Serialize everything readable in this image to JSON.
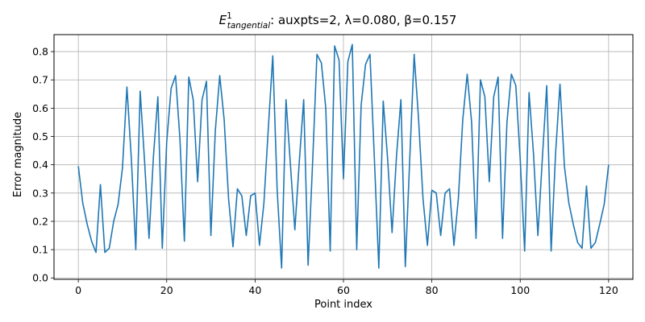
{
  "chart_data": {
    "type": "line",
    "title": {
      "symbol": "E",
      "superscript": "1",
      "subscript": "tangential",
      "text": ": auxpts=2, λ=0.080, β=0.157"
    },
    "xlabel": "Point index",
    "ylabel": "Error magnitude",
    "xlim": [
      -5.5,
      125.5
    ],
    "ylim": [
      -0.005,
      0.86
    ],
    "xticks": [
      0,
      20,
      40,
      60,
      80,
      100,
      120
    ],
    "yticks": [
      0.0,
      0.1,
      0.2,
      0.3,
      0.4,
      0.5,
      0.6,
      0.7,
      0.8
    ],
    "grid": true,
    "colors": {
      "line": "#1f77b4",
      "grid": "#b0b0b0",
      "axes": "#000000"
    },
    "series": [
      {
        "x": [
          0,
          1,
          2,
          3,
          4,
          5,
          6,
          7,
          8,
          9,
          10,
          11,
          12,
          13,
          14,
          15,
          16,
          17,
          18,
          19,
          20,
          21,
          22,
          23,
          24,
          25,
          26,
          27,
          28,
          29,
          30,
          31,
          32,
          33,
          34,
          35,
          36,
          37,
          38,
          39,
          40,
          41,
          42,
          43,
          44,
          45,
          46,
          47,
          48,
          49,
          50,
          51,
          52,
          53,
          54,
          55,
          56,
          57,
          58,
          59,
          60,
          61,
          62,
          63,
          64,
          65,
          66,
          67,
          68,
          69,
          70,
          71,
          72,
          73,
          74,
          75,
          76,
          77,
          78,
          79,
          80,
          81,
          82,
          83,
          84,
          85,
          86,
          87,
          88,
          89,
          90,
          91,
          92,
          93,
          94,
          95,
          96,
          97,
          98,
          99,
          100,
          101,
          102,
          103,
          104,
          105,
          106,
          107,
          108,
          109,
          110,
          111,
          112,
          113,
          114,
          115,
          116,
          117,
          118,
          119,
          120
        ],
        "y": [
          0.395,
          0.265,
          0.19,
          0.13,
          0.09,
          0.33,
          0.09,
          0.105,
          0.2,
          0.26,
          0.39,
          0.675,
          0.42,
          0.1,
          0.66,
          0.41,
          0.14,
          0.43,
          0.64,
          0.105,
          0.48,
          0.67,
          0.715,
          0.49,
          0.13,
          0.71,
          0.63,
          0.34,
          0.63,
          0.695,
          0.15,
          0.52,
          0.715,
          0.56,
          0.28,
          0.11,
          0.315,
          0.29,
          0.15,
          0.29,
          0.3,
          0.115,
          0.265,
          0.53,
          0.785,
          0.31,
          0.035,
          0.63,
          0.4,
          0.17,
          0.41,
          0.63,
          0.045,
          0.4,
          0.79,
          0.76,
          0.6,
          0.095,
          0.82,
          0.77,
          0.35,
          0.765,
          0.825,
          0.1,
          0.61,
          0.755,
          0.79,
          0.42,
          0.035,
          0.625,
          0.42,
          0.16,
          0.43,
          0.63,
          0.04,
          0.42,
          0.79,
          0.56,
          0.28,
          0.115,
          0.31,
          0.3,
          0.15,
          0.3,
          0.315,
          0.115,
          0.28,
          0.56,
          0.72,
          0.55,
          0.14,
          0.7,
          0.64,
          0.34,
          0.64,
          0.71,
          0.14,
          0.55,
          0.72,
          0.68,
          0.42,
          0.095,
          0.655,
          0.44,
          0.15,
          0.42,
          0.68,
          0.095,
          0.44,
          0.685,
          0.395,
          0.265,
          0.19,
          0.125,
          0.105,
          0.325,
          0.105,
          0.125,
          0.19,
          0.26,
          0.4
        ]
      }
    ]
  }
}
